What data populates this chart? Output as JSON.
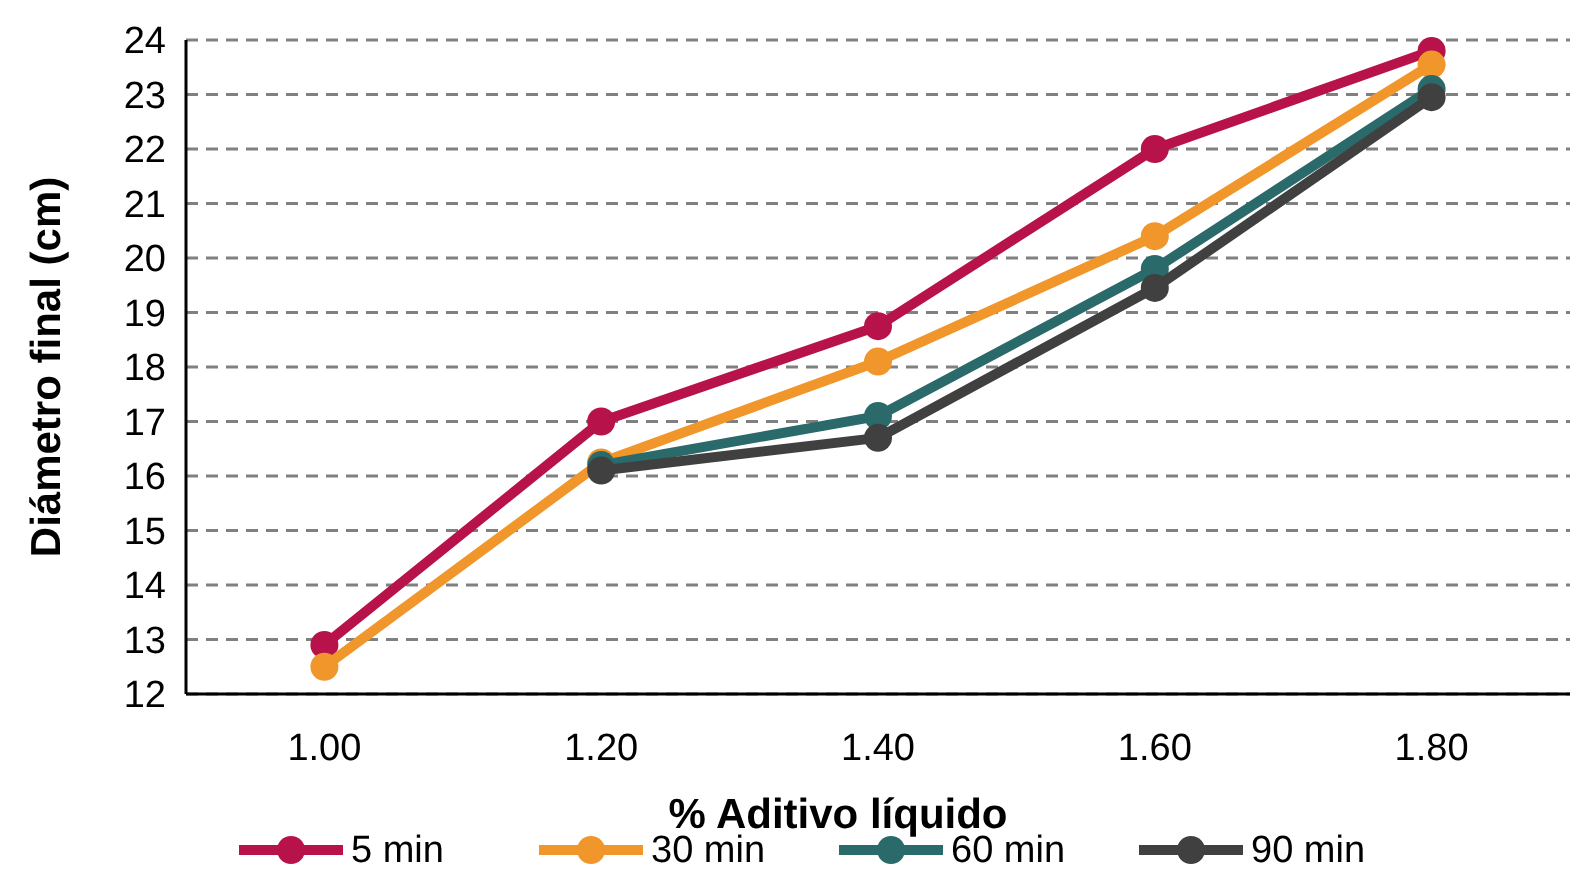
{
  "chart_data": {
    "type": "line",
    "xlabel": "% Aditivo líquido",
    "ylabel": "Diámetro final (cm)",
    "categories": [
      "1.00",
      "1.20",
      "1.40",
      "1.60",
      "1.80"
    ],
    "series": [
      {
        "name": "5 min",
        "color": "#b8124b",
        "values": [
          12.9,
          17.0,
          18.75,
          22.0,
          23.8
        ]
      },
      {
        "name": "30 min",
        "color": "#f0962a",
        "values": [
          12.5,
          16.25,
          18.1,
          20.4,
          23.55
        ]
      },
      {
        "name": "60 min",
        "color": "#2a6a6a",
        "values": [
          null,
          16.2,
          17.1,
          19.8,
          23.1
        ]
      },
      {
        "name": "90 min",
        "color": "#404040",
        "values": [
          null,
          16.1,
          16.7,
          19.45,
          22.95
        ]
      }
    ],
    "ylim": [
      12,
      24
    ],
    "yticks": [
      12,
      13,
      14,
      15,
      16,
      17,
      18,
      19,
      20,
      21,
      22,
      23,
      24
    ],
    "grid": "y",
    "legend": "bottom",
    "marker": "circle",
    "line_style": "solid"
  }
}
